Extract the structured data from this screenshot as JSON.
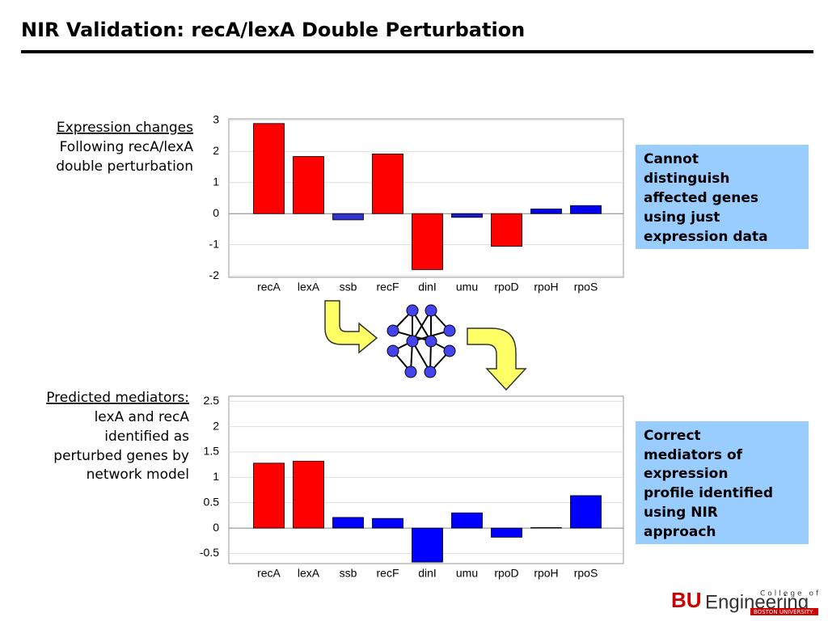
{
  "title": "NIR Validation: recA/lexA Double Perturbation",
  "left_labels": [
    {
      "heading": "Expression changes",
      "lines": [
        "Following recA/lexA",
        "double perturbation"
      ]
    },
    {
      "heading": "Predicted mediators:",
      "lines": [
        "lexA and recA",
        "identified as",
        "perturbed genes by",
        "network model"
      ]
    }
  ],
  "notes": [
    [
      "Cannot",
      "distinguish",
      "affected genes",
      "using just",
      "expression data"
    ],
    [
      "Correct",
      "mediators of",
      "expression",
      "profile identified",
      "using NIR",
      "approach"
    ]
  ],
  "logo": {
    "bu": "BU",
    "word": "Engineering",
    "top": "College of",
    "bottom": "BOSTON UNIVERSITY"
  },
  "chart_data": [
    {
      "type": "bar",
      "categories": [
        "recA",
        "lexA",
        "ssb",
        "recF",
        "dinI",
        "umu",
        "rpoD",
        "rpoH",
        "rpoS"
      ],
      "values": [
        2.9,
        1.84,
        -0.2,
        1.92,
        -1.8,
        -0.12,
        -1.05,
        0.15,
        0.26
      ],
      "colors": [
        "#ff0000",
        "#ff0000",
        "#3333cc",
        "#ff0000",
        "#ff0000",
        "#1a1acc",
        "#ff0000",
        "#0000ee",
        "#0000ee"
      ],
      "ylim": [
        -2.05,
        3.05
      ],
      "yticks": [
        -2,
        -1,
        0,
        1,
        2,
        3
      ],
      "grid": true
    },
    {
      "type": "bar",
      "categories": [
        "recA",
        "lexA",
        "ssb",
        "recF",
        "dinI",
        "umu",
        "rpoD",
        "rpoH",
        "rpoS"
      ],
      "values": [
        1.28,
        1.32,
        0.21,
        0.19,
        -0.67,
        0.3,
        -0.18,
        0.01,
        0.64
      ],
      "colors": [
        "#ff0000",
        "#ff0000",
        "#0000ff",
        "#0000ff",
        "#0000ff",
        "#0000ff",
        "#0000ff",
        "#0000ff",
        "#0000ff"
      ],
      "ylim": [
        -0.7,
        2.6
      ],
      "yticks": [
        -0.5,
        0,
        0.5,
        1,
        1.5,
        2,
        2.5
      ],
      "grid": true
    }
  ]
}
